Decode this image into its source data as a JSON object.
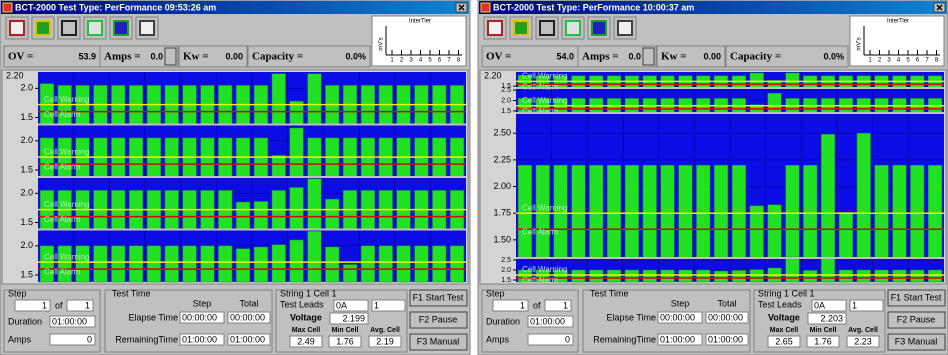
{
  "windows": [
    {
      "title": "BCT-2000   Test Type: PerFormance 09:53:26 am",
      "intertier": {
        "title": "InterTier",
        "unit": "mV's",
        "xlabels": [
          "1",
          "2",
          "3",
          "4",
          "5",
          "6",
          "7",
          "8"
        ]
      },
      "readouts": {
        "ov_label": "OV =",
        "ov": "53.9",
        "amps_label": "Amps =",
        "amps": "0.0",
        "kw_label": "Kw =",
        "kw": "0.00",
        "capacity_label": "Capacity =",
        "capacity": "0.0%"
      },
      "chart": {
        "top_label": "2.20",
        "warning_label": "Cell Warning",
        "alarm_label": "Cell Alarm",
        "strips": [
          {
            "ylim": [
              1.38,
              2.28
            ],
            "yticks": [
              {
                "value": 2,
                "label": "2.0"
              },
              1.5
            ],
            "warning": 1.72,
            "alarm": 1.6,
            "values": [
              2.08,
              2.05,
              2.05,
              2.05,
              2.05,
              2.05,
              2.05,
              2.05,
              2.05,
              2.05,
              2.05,
              2.05,
              2.05,
              2.25,
              1.78,
              2.25,
              2.05,
              2.05,
              2.05,
              2.05,
              2.05,
              2.05,
              2.05,
              2.05
            ]
          },
          {
            "ylim": [
              1.38,
              2.28
            ],
            "yticks": [
              {
                "value": 2,
                "label": "2.0"
              },
              1.5
            ],
            "warning": 1.72,
            "alarm": 1.6,
            "values": [
              2.05,
              2.05,
              2.05,
              2.05,
              2.05,
              2.05,
              2.05,
              2.05,
              2.05,
              2.05,
              2.05,
              2.05,
              2.05,
              1.75,
              2.22,
              2.05,
              2.05,
              2.05,
              2.05,
              2.05,
              2.05,
              2.05,
              2.05,
              2.05
            ]
          },
          {
            "ylim": [
              1.38,
              2.28
            ],
            "yticks": [
              {
                "value": 2,
                "label": "2.0"
              },
              1.5
            ],
            "warning": 1.72,
            "alarm": 1.6,
            "values": [
              2.05,
              2.05,
              2.05,
              2.05,
              2.05,
              2.05,
              2.05,
              2.05,
              2.05,
              2.05,
              2.05,
              1.85,
              1.86,
              2.05,
              2.1,
              2.25,
              1.9,
              2.05,
              2.05,
              2.05,
              2.05,
              2.05,
              2.05,
              2.05
            ]
          },
          {
            "ylim": [
              1.38,
              2.28
            ],
            "yticks": [
              {
                "value": 2,
                "label": "2.0"
              },
              1.5
            ],
            "warning": 1.72,
            "alarm": 1.6,
            "values": [
              2.0,
              2.0,
              2.0,
              2.0,
              2.0,
              2.0,
              2.0,
              2.0,
              2.0,
              2.0,
              2.0,
              1.95,
              1.98,
              2.02,
              2.1,
              2.25,
              1.98,
              1.68,
              2.0,
              2.0,
              2.0,
              2.0,
              2.0,
              2.0
            ]
          }
        ]
      },
      "step_panel": {
        "title": "Step",
        "step": "1",
        "of": "of",
        "total": "1",
        "duration_label": "Duration",
        "duration": "01:00:00",
        "amps_label": "Amps",
        "amps": "0"
      },
      "test_time": {
        "title": "Test Time",
        "step_header": "Step",
        "total_header": "Total",
        "elapse_label": "Elapse Time",
        "elapse_step": "00:00:00",
        "elapse_total": "00:00:00",
        "remaining_label": "RemainingTime",
        "remaining_step": "01:00:00",
        "remaining_total": "01:00:00"
      },
      "string_panel": {
        "title": "String 1 Cell 1",
        "leads_label": "Test Leads",
        "leads": "0A",
        "leads_cell": "1",
        "voltage_label": "Voltage",
        "voltage": "2.199",
        "max_label": "Max Cell",
        "min_label": "Min Cell",
        "avg_label": "Avg. Cell",
        "max": "2.49",
        "min": "1.76",
        "avg": "2.19"
      },
      "buttons": [
        "F1 Start Test",
        "F2 Pause",
        "F3 Manual"
      ]
    },
    {
      "title": "BCT-2000   Test Type: PerFormance 10:00:37 am",
      "intertier": {
        "title": "InterTier",
        "unit": "mV's",
        "xlabels": [
          "1",
          "2",
          "3",
          "4",
          "5",
          "6",
          "7",
          "8"
        ]
      },
      "readouts": {
        "ov_label": "OV =",
        "ov": "54.0",
        "amps_label": "Amps =",
        "amps": "0.0",
        "kw_label": "Kw =",
        "kw": "0.00",
        "capacity_label": "Capacity =",
        "capacity": "0.0%"
      },
      "chart": {
        "top_label": "2.20",
        "warning_label": "Cell Warning",
        "alarm_label": "Cell Alarm",
        "strips": [
          {
            "ylim": [
              1.4,
              2.25
            ],
            "yticks": [
              1.5
            ],
            "warning": 1.75,
            "alarm": 1.6,
            "values": [
              2.08,
              2.05,
              2.05,
              2.05,
              2.05,
              2.05,
              2.05,
              2.05,
              2.05,
              2.05,
              2.05,
              2.05,
              2.05,
              2.2,
              1.8,
              2.2,
              2.05,
              2.05,
              2.05,
              2.05,
              2.05,
              2.05,
              2.05,
              2.05
            ]
          },
          {
            "ylim": [
              1.4,
              2.6
            ],
            "yticks": [
              2.5,
              {
                "value": 2,
                "label": "2.0"
              },
              1.5
            ],
            "warning": 1.75,
            "alarm": 1.6,
            "values": [
              2.1,
              2.1,
              2.1,
              2.1,
              2.1,
              2.1,
              2.1,
              2.1,
              2.1,
              2.1,
              2.1,
              2.1,
              2.1,
              1.8,
              2.35,
              2.1,
              2.1,
              2.1,
              2.1,
              2.1,
              2.1,
              2.1,
              2.1,
              2.1
            ]
          },
          {
            "ylim": [
              1.33,
              2.69
            ],
            "yticks": [
              {
                "value": 2.5,
                "label": "2.50"
              },
              2.25,
              {
                "value": 2,
                "label": "2.00"
              },
              1.75,
              {
                "value": 1.5,
                "label": "1.50"
              }
            ],
            "warning": 1.75,
            "alarm": 1.6,
            "values": [
              2.2,
              2.2,
              2.2,
              2.2,
              2.2,
              2.2,
              2.2,
              2.2,
              2.2,
              2.2,
              2.2,
              2.2,
              2.2,
              1.82,
              1.83,
              2.2,
              2.2,
              2.49,
              1.76,
              2.5,
              2.2,
              2.2,
              2.2,
              2.2
            ]
          },
          {
            "ylim": [
              1.4,
              2.6
            ],
            "yticks": [
              2.5,
              {
                "value": 2,
                "label": "2.0"
              },
              1.5
            ],
            "warning": 1.75,
            "alarm": 1.6,
            "values": [
              2.0,
              2.0,
              2.0,
              2.0,
              2.0,
              2.0,
              2.0,
              2.0,
              2.0,
              2.0,
              2.0,
              1.95,
              1.98,
              2.02,
              2.1,
              2.65,
              1.98,
              2.6,
              2.0,
              2.0,
              2.0,
              2.0,
              2.0,
              2.0
            ]
          }
        ]
      },
      "step_panel": {
        "title": "Step",
        "step": "1",
        "of": "of",
        "total": "1",
        "duration_label": "Duration",
        "duration": "01:00:00",
        "amps_label": "Amps",
        "amps": "0"
      },
      "test_time": {
        "title": "Test Time",
        "step_header": "Step",
        "total_header": "Total",
        "elapse_label": "Elapse Time",
        "elapse_step": "00:00:00",
        "elapse_total": "00:00:00",
        "remaining_label": "RemainingTime",
        "remaining_step": "01:00:00",
        "remaining_total": "01:00:00"
      },
      "string_panel": {
        "title": "String 1 Cell 1",
        "leads_label": "Test Leads",
        "leads": "0A",
        "leads_cell": "1",
        "voltage_label": "Voltage",
        "voltage": "2.203",
        "max_label": "Max Cell",
        "min_label": "Min Cell",
        "avg_label": "Avg. Cell",
        "max": "2.65",
        "min": "1.76",
        "avg": "2.23"
      },
      "buttons": [
        "F1 Start Test",
        "F2 Pause",
        "F3 Manual"
      ]
    }
  ]
}
